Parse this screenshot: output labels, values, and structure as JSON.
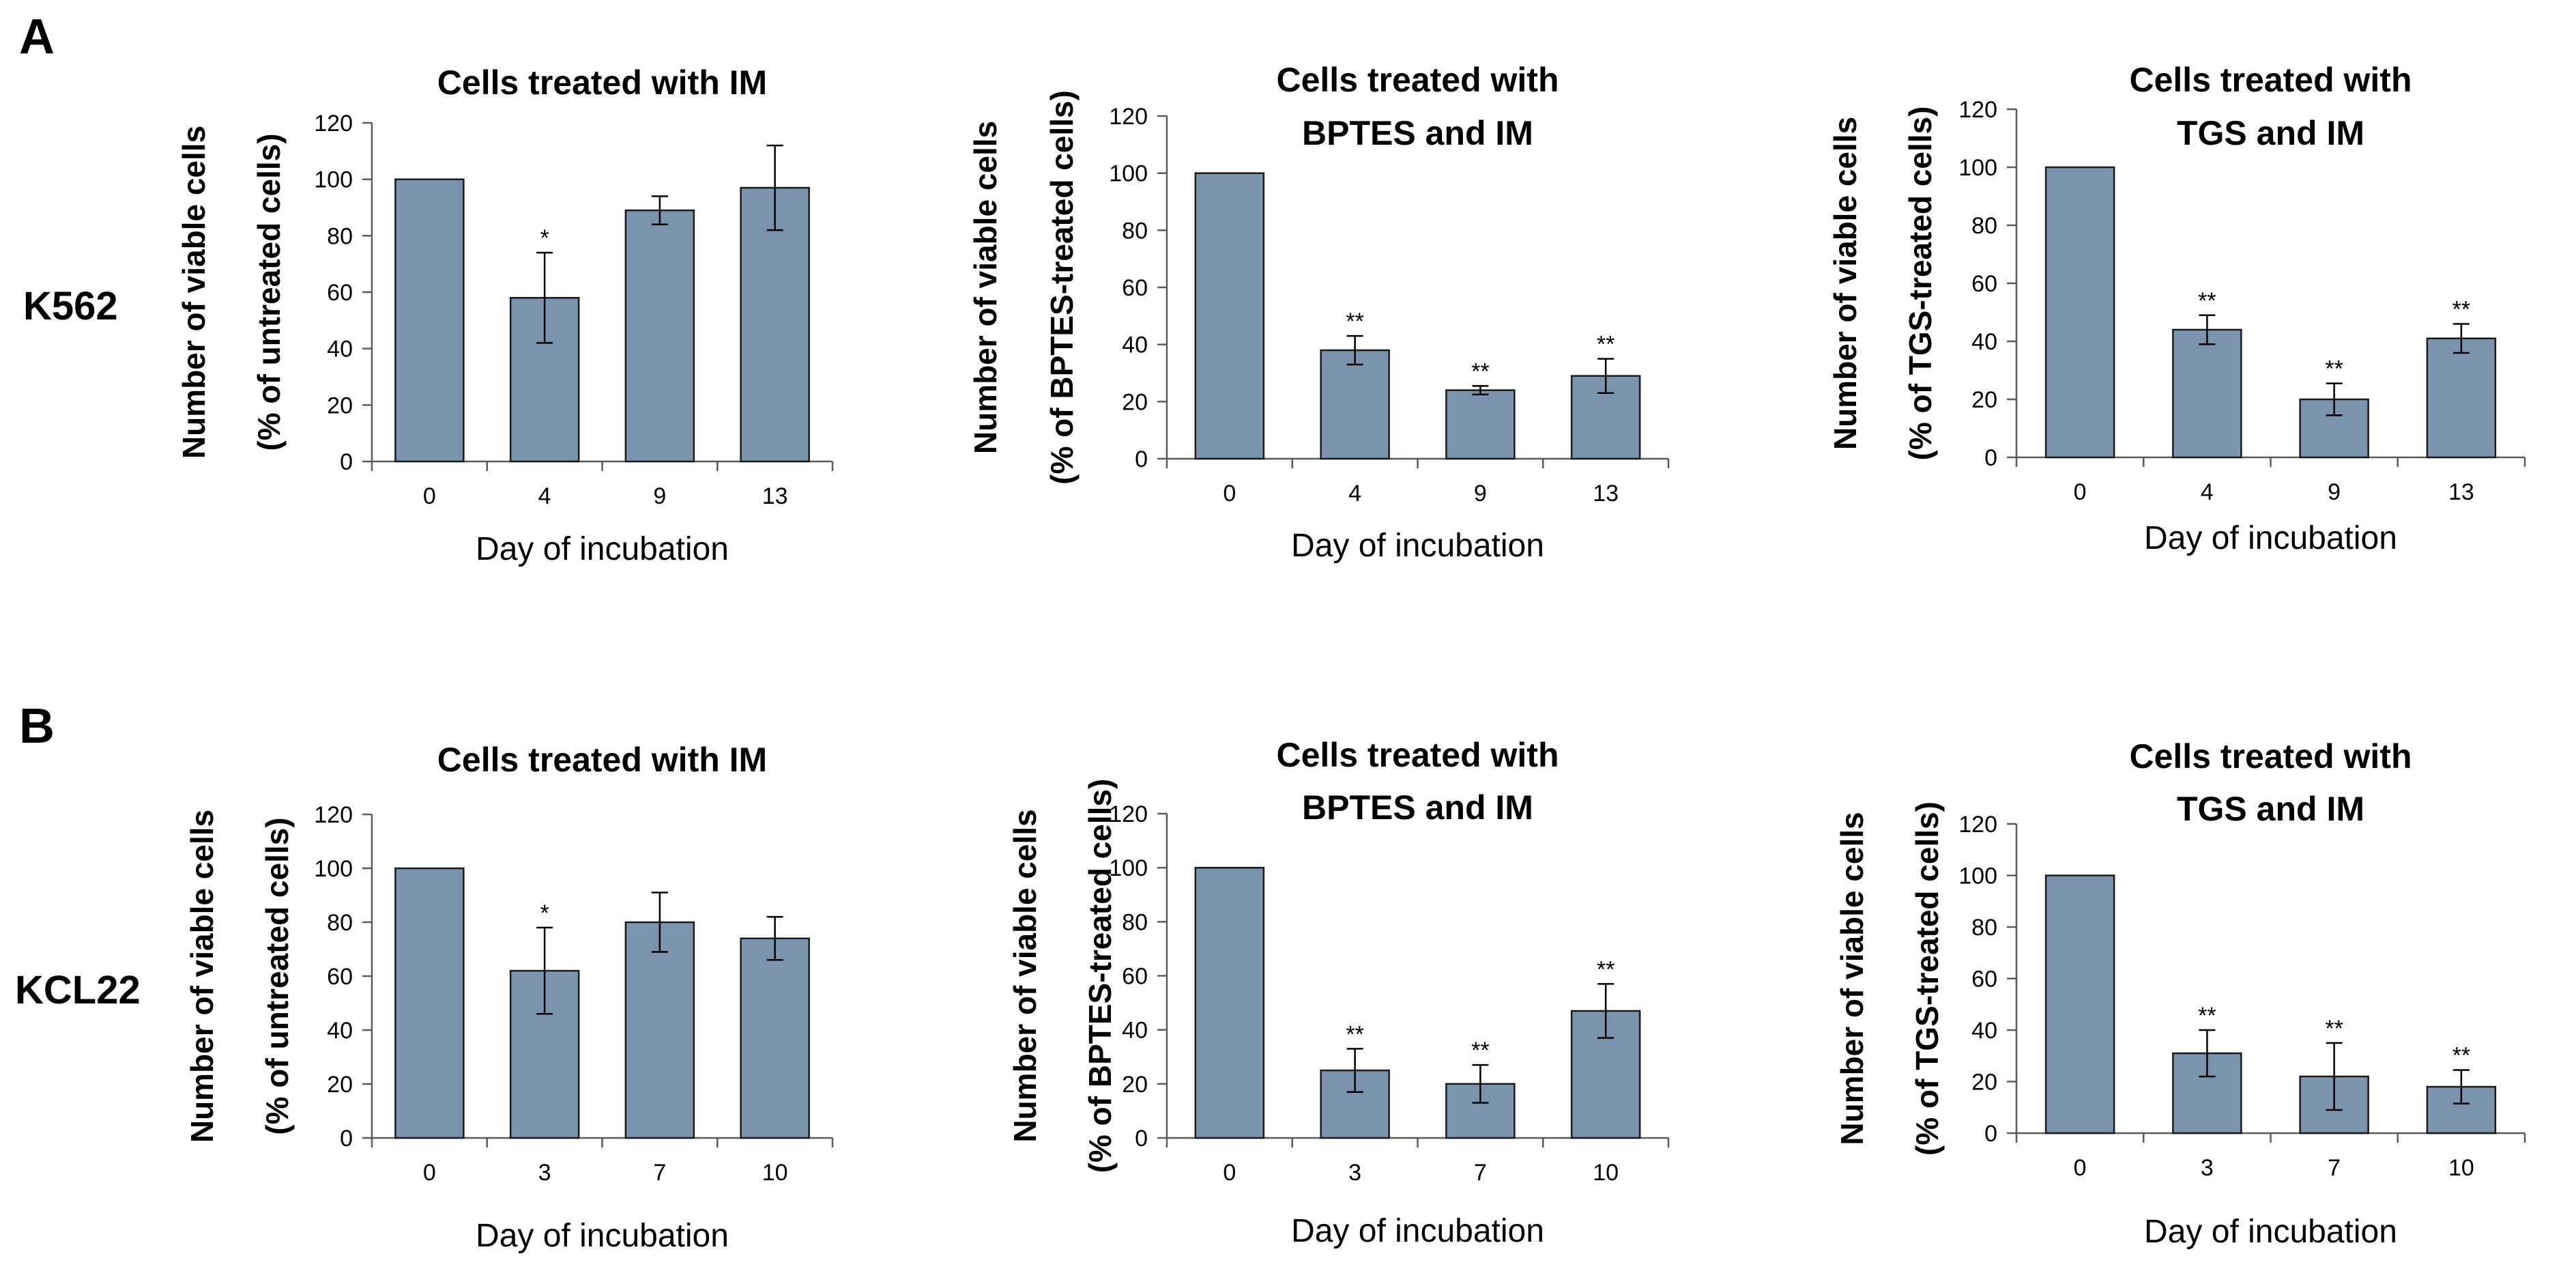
{
  "panels": {
    "A": {
      "letter": "A",
      "row_label": "K562"
    },
    "B": {
      "letter": "B",
      "row_label": "KCL22"
    }
  },
  "chart_data": [
    {
      "type": "bar",
      "panel": "A",
      "cell_line": "K562",
      "title": [
        "Cells treated with IM"
      ],
      "ylabel": [
        "Number of viable cells",
        "(% of untreated cells)"
      ],
      "xlabel": "Day of incubation",
      "categories": [
        "0",
        "4",
        "9",
        "13"
      ],
      "values": [
        100,
        58,
        89,
        97
      ],
      "errors": [
        0,
        16,
        5,
        15
      ],
      "significance": [
        "",
        "*",
        "",
        ""
      ],
      "ylim": [
        0,
        120
      ],
      "yticks": [
        0,
        20,
        40,
        60,
        80,
        100,
        120
      ]
    },
    {
      "type": "bar",
      "panel": "A",
      "cell_line": "K562",
      "title": [
        "Cells treated with",
        "BPTES and IM"
      ],
      "ylabel": [
        "Number of viable cells",
        "(% of BPTES-treated cells)"
      ],
      "xlabel": "Day of incubation",
      "categories": [
        "0",
        "4",
        "9",
        "13"
      ],
      "values": [
        100,
        38,
        24,
        29
      ],
      "errors": [
        0,
        5,
        1.5,
        6
      ],
      "significance": [
        "",
        "**",
        "**",
        "**"
      ],
      "ylim": [
        0,
        120
      ],
      "yticks": [
        0,
        20,
        40,
        60,
        80,
        100,
        120
      ]
    },
    {
      "type": "bar",
      "panel": "A",
      "cell_line": "K562",
      "title": [
        "Cells treated with",
        "TGS and IM"
      ],
      "ylabel": [
        "Number of viable cells",
        "(% of TGS-treated cells)"
      ],
      "xlabel": "Day of incubation",
      "categories": [
        "0",
        "4",
        "9",
        "13"
      ],
      "values": [
        100,
        44,
        20,
        41
      ],
      "errors": [
        0,
        5,
        5.5,
        5
      ],
      "significance": [
        "",
        "**",
        "**",
        "**"
      ],
      "ylim": [
        0,
        120
      ],
      "yticks": [
        0,
        20,
        40,
        60,
        80,
        100,
        120
      ]
    },
    {
      "type": "bar",
      "panel": "B",
      "cell_line": "KCL22",
      "title": [
        "Cells treated with IM"
      ],
      "ylabel": [
        "Number of viable cells",
        "(% of untreated cells)"
      ],
      "xlabel": "Day of incubation",
      "categories": [
        "0",
        "3",
        "7",
        "10"
      ],
      "values": [
        100,
        62,
        80,
        74
      ],
      "errors": [
        0,
        16,
        11,
        8
      ],
      "significance": [
        "",
        "*",
        "",
        ""
      ],
      "ylim": [
        0,
        120
      ],
      "yticks": [
        0,
        20,
        40,
        60,
        80,
        100,
        120
      ]
    },
    {
      "type": "bar",
      "panel": "B",
      "cell_line": "KCL22",
      "title": [
        "Cells treated with",
        "BPTES and IM"
      ],
      "ylabel": [
        "Number of viable cells",
        "(% of BPTES-treated cells)"
      ],
      "xlabel": "Day of incubation",
      "categories": [
        "0",
        "3",
        "7",
        "10"
      ],
      "values": [
        100,
        25,
        20,
        47
      ],
      "errors": [
        0,
        8,
        7,
        10
      ],
      "significance": [
        "",
        "**",
        "**",
        "**"
      ],
      "ylim": [
        0,
        120
      ],
      "yticks": [
        0,
        20,
        40,
        60,
        80,
        100,
        120
      ]
    },
    {
      "type": "bar",
      "panel": "B",
      "cell_line": "KCL22",
      "title": [
        "Cells treated with",
        "TGS and IM"
      ],
      "ylabel": [
        "Number of viable cells",
        "(% of TGS-treated cells)"
      ],
      "xlabel": "Day of incubation",
      "categories": [
        "0",
        "3",
        "7",
        "10"
      ],
      "values": [
        100,
        31,
        22,
        18
      ],
      "errors": [
        0,
        9,
        13,
        6.5
      ],
      "significance": [
        "",
        "**",
        "**",
        "**"
      ],
      "ylim": [
        0,
        120
      ],
      "yticks": [
        0,
        20,
        40,
        60,
        80,
        100,
        120
      ]
    }
  ]
}
